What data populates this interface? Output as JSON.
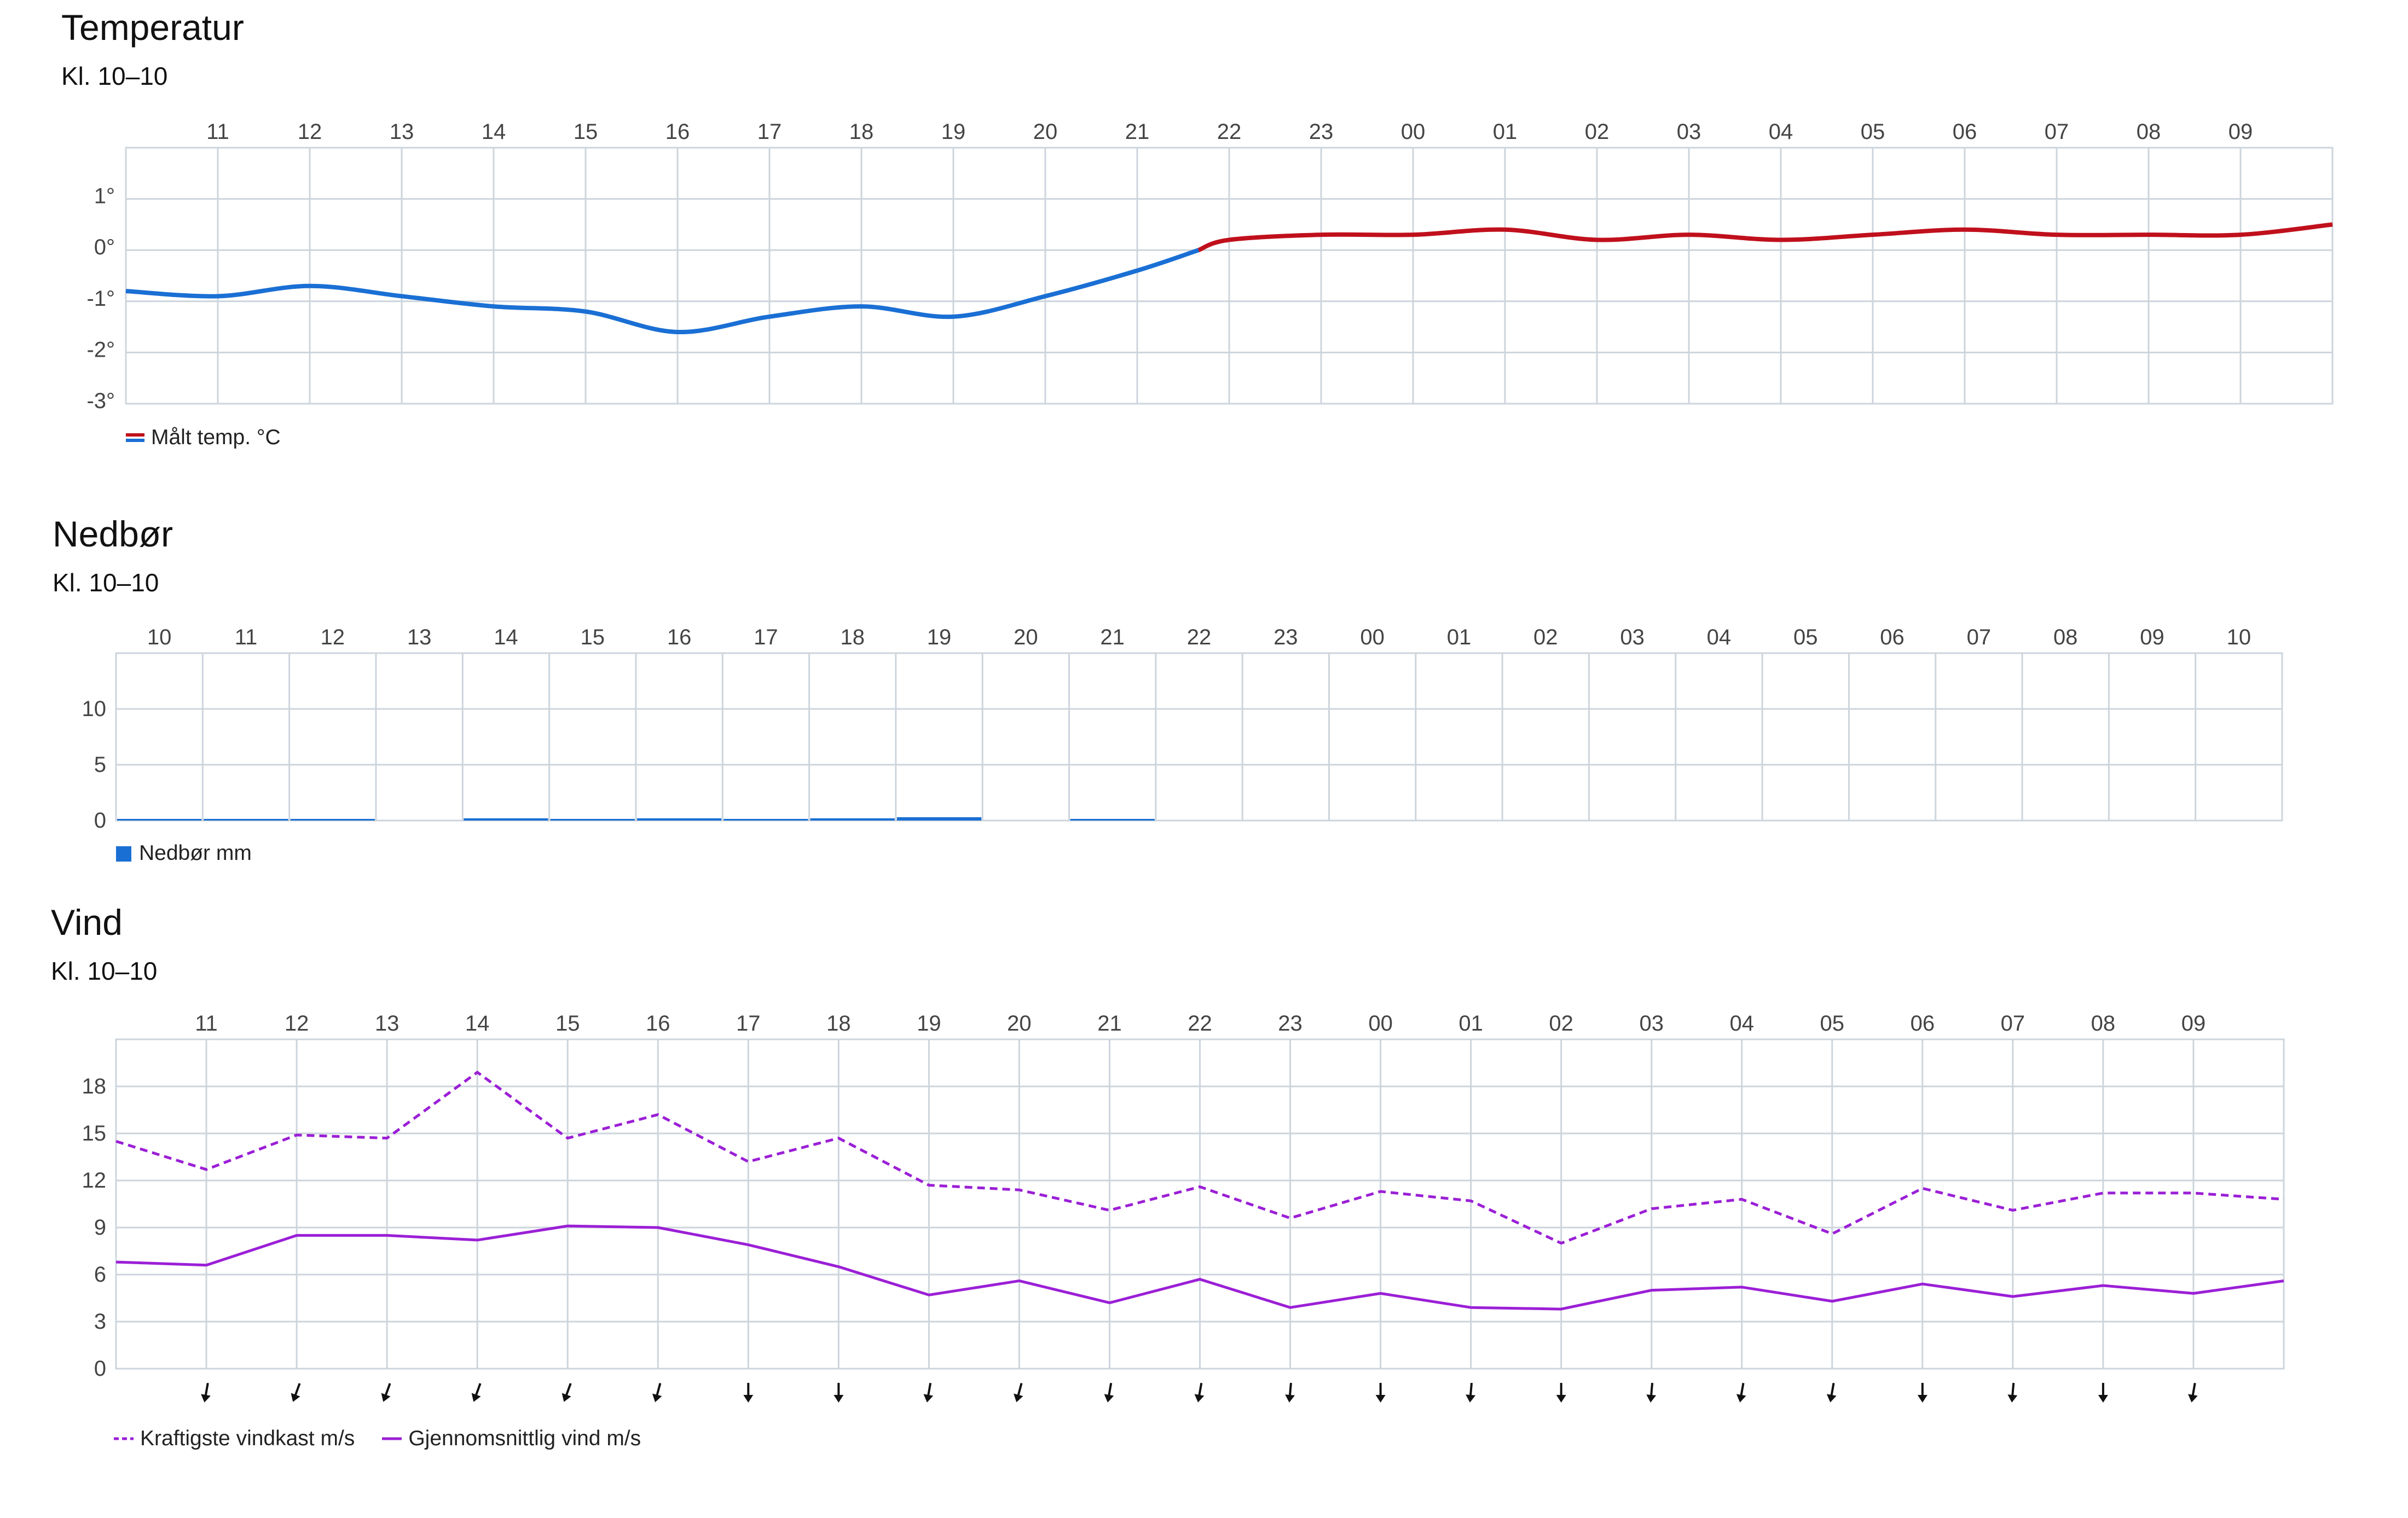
{
  "temperature": {
    "title": "Temperatur",
    "subtitle": "Kl. 10–10",
    "legend": "Målt temp. °C",
    "colors": {
      "cold": "#1a6fd4",
      "warm": "#c0101c",
      "grid": "#cdd5dc"
    }
  },
  "precipitation": {
    "title": "Nedbør",
    "subtitle": "Kl. 10–10",
    "legend": "Nedbør mm",
    "colors": {
      "bar": "#1a6fd4",
      "grid": "#cdd5dc"
    }
  },
  "wind": {
    "title": "Vind",
    "subtitle": "Kl. 10–10",
    "legend_gust": "Kraftigste vindkast m/s",
    "legend_avg": "Gjennomsnittlig vind m/s",
    "colors": {
      "line": "#9b1fd6",
      "arrow": "#111111",
      "grid": "#cdd5dc"
    }
  },
  "chart_data": [
    {
      "id": "temperature",
      "type": "line",
      "x_labels": [
        "11",
        "12",
        "13",
        "14",
        "15",
        "16",
        "17",
        "18",
        "19",
        "20",
        "21",
        "22",
        "23",
        "00",
        "01",
        "02",
        "03",
        "04",
        "05",
        "06",
        "07",
        "08",
        "09"
      ],
      "x_hours": [
        10,
        11,
        12,
        13,
        14,
        15,
        16,
        17,
        18,
        19,
        20,
        21,
        22,
        23,
        24,
        25,
        26,
        27,
        28,
        29,
        30,
        31,
        32,
        33,
        34
      ],
      "series": [
        {
          "name": "Målt temp. °C",
          "values": [
            -0.8,
            -0.9,
            -0.7,
            -0.9,
            -1.1,
            -1.2,
            -1.6,
            -1.3,
            -1.1,
            -1.3,
            -0.9,
            -0.4,
            0.2,
            0.3,
            0.3,
            0.4,
            0.2,
            0.3,
            0.2,
            0.3,
            0.4,
            0.3,
            0.3,
            0.3,
            0.5
          ]
        }
      ],
      "y_ticks": [
        "1°",
        "0°",
        "-1°",
        "-2°",
        "-3°"
      ],
      "ylim": [
        -3,
        2
      ],
      "grid": true,
      "legend_position": "bottom-left"
    },
    {
      "id": "precipitation",
      "type": "bar",
      "categories": [
        "10",
        "11",
        "12",
        "13",
        "14",
        "15",
        "16",
        "17",
        "18",
        "19",
        "20",
        "21",
        "22",
        "23",
        "00",
        "01",
        "02",
        "03",
        "04",
        "05",
        "06",
        "07",
        "08",
        "09",
        "10"
      ],
      "series": [
        {
          "name": "Nedbør mm",
          "values": [
            0.1,
            0.1,
            0.1,
            0,
            0.2,
            0.1,
            0.2,
            0.1,
            0.2,
            0.3,
            0,
            0.1,
            0,
            0,
            0,
            0,
            0,
            0,
            0,
            0,
            0,
            0,
            0,
            0,
            0
          ]
        }
      ],
      "y_ticks": [
        "10",
        "5",
        "0"
      ],
      "ylim": [
        0,
        15
      ],
      "grid": true,
      "legend_position": "bottom-left"
    },
    {
      "id": "wind",
      "type": "line",
      "x_labels": [
        "11",
        "12",
        "13",
        "14",
        "15",
        "16",
        "17",
        "18",
        "19",
        "20",
        "21",
        "22",
        "23",
        "00",
        "01",
        "02",
        "03",
        "04",
        "05",
        "06",
        "07",
        "08",
        "09"
      ],
      "x_hours": [
        10,
        11,
        12,
        13,
        14,
        15,
        16,
        17,
        18,
        19,
        20,
        21,
        22,
        23,
        24,
        25,
        26,
        27,
        28,
        29,
        30,
        31,
        32,
        33,
        34
      ],
      "series": [
        {
          "name": "Kraftigste vindkast m/s",
          "dashed": true,
          "values": [
            14.5,
            12.7,
            14.9,
            14.7,
            18.9,
            14.7,
            16.2,
            13.2,
            14.7,
            11.7,
            11.4,
            10.1,
            11.6,
            9.6,
            11.3,
            10.7,
            8.0,
            10.2,
            10.8,
            8.6,
            11.5,
            10.1,
            11.2,
            11.2,
            10.8
          ]
        },
        {
          "name": "Gjennomsnittlig vind m/s",
          "dashed": false,
          "values": [
            6.8,
            6.6,
            8.5,
            8.5,
            8.2,
            9.1,
            9.0,
            7.9,
            6.5,
            4.7,
            5.6,
            4.2,
            5.7,
            3.9,
            4.8,
            3.9,
            3.8,
            5.0,
            5.2,
            4.3,
            5.4,
            4.6,
            5.3,
            4.8,
            5.6
          ]
        }
      ],
      "y_ticks": [
        "18",
        "15",
        "12",
        "9",
        "6",
        "3",
        "0"
      ],
      "ylim": [
        0,
        21
      ],
      "direction_rotation_deg": [
        10,
        20,
        20,
        20,
        20,
        15,
        0,
        0,
        10,
        15,
        10,
        10,
        5,
        0,
        5,
        0,
        5,
        10,
        10,
        0,
        5,
        0,
        10
      ],
      "grid": true,
      "legend_position": "bottom-left"
    }
  ]
}
